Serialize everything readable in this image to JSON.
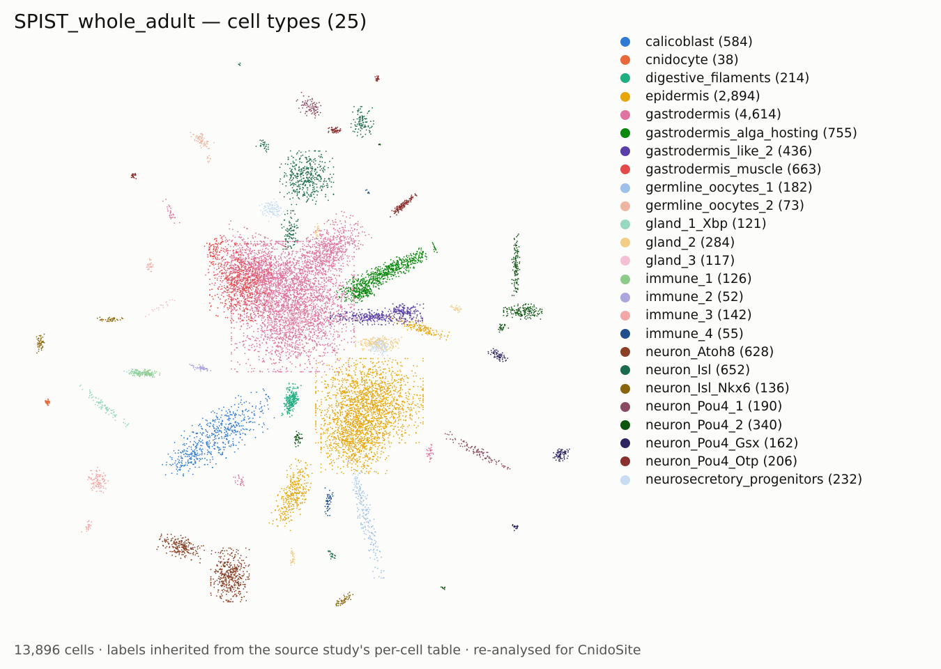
{
  "chart_data": {
    "type": "scatter",
    "title": "SPIST_whole_adult — cell types (25)",
    "footer": "13,896 cells · labels inherited from the source study's per-cell table · re-analysed for CnidoSite",
    "axes_visible": false,
    "legend_placement": "right",
    "series": [
      {
        "name": "calicoblast (584)",
        "count": 584,
        "color": "#2f7ad4"
      },
      {
        "name": "cnidocyte (38)",
        "count": 38,
        "color": "#e8683a"
      },
      {
        "name": "digestive_filaments (214)",
        "count": 214,
        "color": "#1fae80"
      },
      {
        "name": "epidermis (2,894)",
        "count": 2894,
        "color": "#e8a60d"
      },
      {
        "name": "gastrodermis (4,614)",
        "count": 4614,
        "color": "#e0739f"
      },
      {
        "name": "gastrodermis_alga_hosting (755)",
        "count": 755,
        "color": "#0b870e"
      },
      {
        "name": "gastrodermis_like_2 (436)",
        "count": 436,
        "color": "#5a3ea8"
      },
      {
        "name": "gastrodermis_muscle (663)",
        "count": 663,
        "color": "#e34a4a"
      },
      {
        "name": "germline_oocytes_1 (182)",
        "count": 182,
        "color": "#9ec0ea"
      },
      {
        "name": "germline_oocytes_2 (73)",
        "count": 73,
        "color": "#efb5a0"
      },
      {
        "name": "gland_1_Xbp (121)",
        "count": 121,
        "color": "#98d8c0"
      },
      {
        "name": "gland_2 (284)",
        "count": 284,
        "color": "#f3cd88"
      },
      {
        "name": "gland_3 (117)",
        "count": 117,
        "color": "#f3c0d4"
      },
      {
        "name": "immune_1 (126)",
        "count": 126,
        "color": "#8ccb88"
      },
      {
        "name": "immune_2 (52)",
        "count": 52,
        "color": "#aba6dc"
      },
      {
        "name": "immune_3 (142)",
        "count": 142,
        "color": "#f2a8a6"
      },
      {
        "name": "immune_4 (55)",
        "count": 55,
        "color": "#1f4e8a"
      },
      {
        "name": "neuron_Atoh8 (628)",
        "count": 628,
        "color": "#8a4026"
      },
      {
        "name": "neuron_Isl (652)",
        "count": 652,
        "color": "#1b6b4c"
      },
      {
        "name": "neuron_Isl_Nkx6 (136)",
        "count": 136,
        "color": "#8a6408"
      },
      {
        "name": "neuron_Pou4_1 (190)",
        "count": 190,
        "color": "#8b4a62"
      },
      {
        "name": "neuron_Pou4_2 (340)",
        "count": 340,
        "color": "#0b5510"
      },
      {
        "name": "neuron_Pou4_Gsx (162)",
        "count": 162,
        "color": "#2e2462"
      },
      {
        "name": "neuron_Pou4_Otp (206)",
        "count": 206,
        "color": "#8a2e2e"
      },
      {
        "name": "neurosecretory_progenitors (232)",
        "count": 232,
        "color": "#c8dcf2"
      }
    ]
  }
}
